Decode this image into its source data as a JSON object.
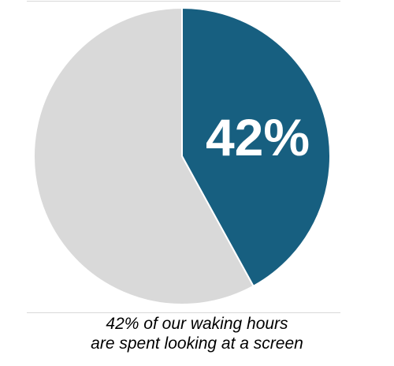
{
  "chart_data": {
    "type": "pie",
    "slices": [
      {
        "label": "42%",
        "value": 42,
        "color": "#175f80"
      },
      {
        "value": 58,
        "color": "#d9d9d9"
      }
    ],
    "start": "12 o'clock",
    "direction": "clockwise",
    "legend": "none"
  },
  "caption": {
    "line1": "42% of our waking hours",
    "line2": "are spent looking at a screen"
  }
}
